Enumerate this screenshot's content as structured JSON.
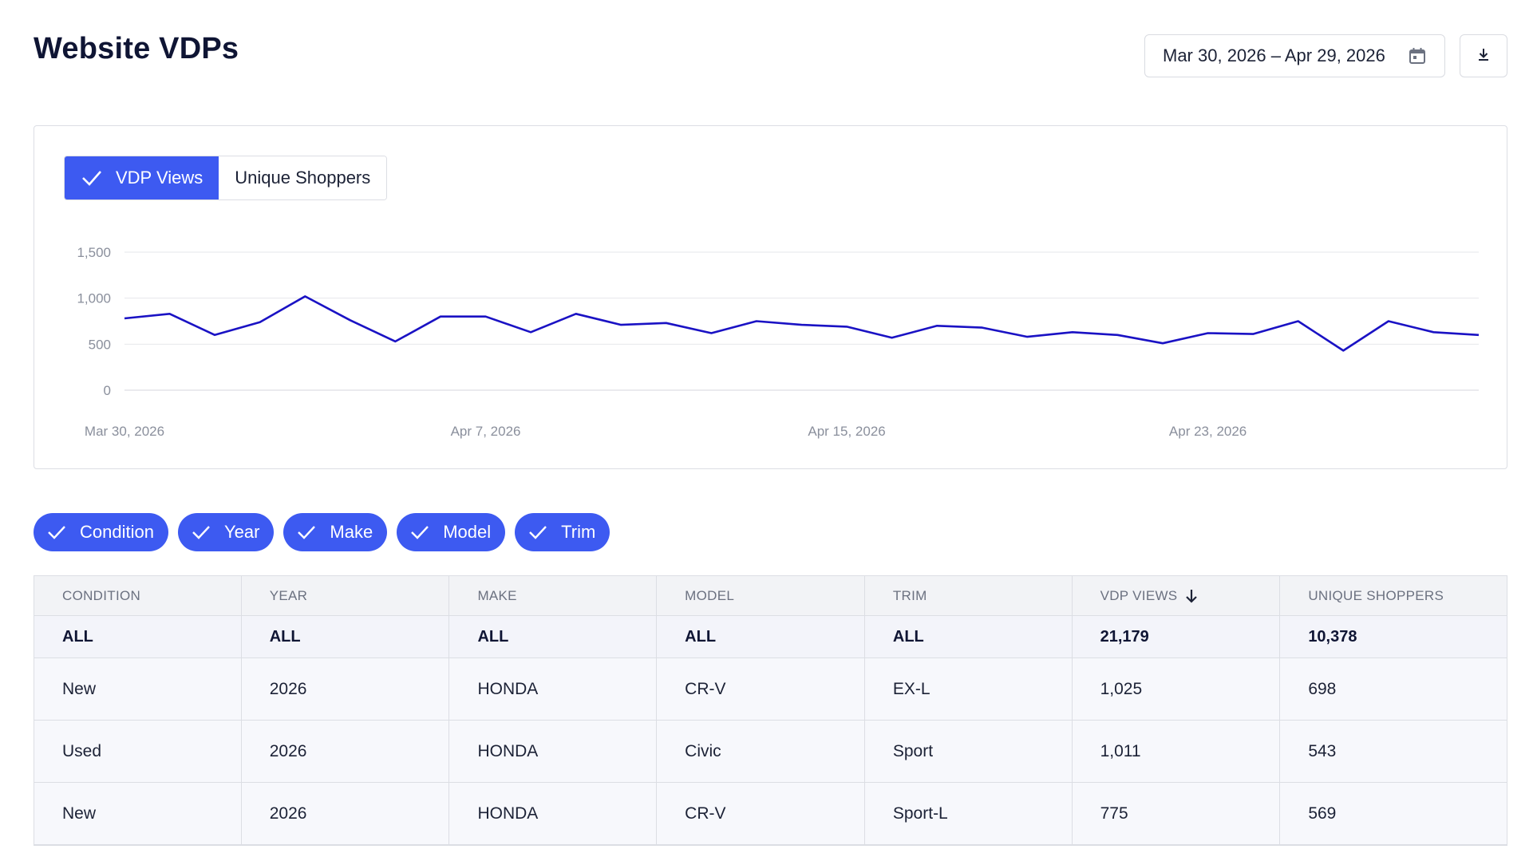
{
  "page": {
    "title": "Website VDPs"
  },
  "header": {
    "date_range": "Mar 30, 2026 – Apr 29, 2026",
    "calendar_icon": "calendar-icon",
    "download_icon": "download-icon"
  },
  "metrics": [
    {
      "label": "VDP Views",
      "active": true
    },
    {
      "label": "Unique Shoppers",
      "active": false
    }
  ],
  "colors": {
    "accent": "#3d5af1",
    "line": "#1a12c4",
    "title": "#0f1534"
  },
  "chart_data": {
    "type": "line",
    "series": [
      {
        "values": [
          780,
          830,
          600,
          740,
          1020,
          760,
          530,
          800,
          800,
          630,
          830,
          710,
          730,
          620,
          750,
          710,
          690,
          570,
          700,
          680,
          580,
          630,
          600,
          510,
          620,
          610,
          750,
          430,
          750,
          630,
          600
        ]
      }
    ],
    "x": [
      "Mar 30, 2026",
      "Mar 31, 2026",
      "Apr 1, 2026",
      "Apr 2, 2026",
      "Apr 3, 2026",
      "Apr 4, 2026",
      "Apr 5, 2026",
      "Apr 6, 2026",
      "Apr 7, 2026",
      "Apr 8, 2026",
      "Apr 9, 2026",
      "Apr 10, 2026",
      "Apr 11, 2026",
      "Apr 12, 2026",
      "Apr 13, 2026",
      "Apr 14, 2026",
      "Apr 15, 2026",
      "Apr 16, 2026",
      "Apr 17, 2026",
      "Apr 18, 2026",
      "Apr 19, 2026",
      "Apr 20, 2026",
      "Apr 21, 2026",
      "Apr 22, 2026",
      "Apr 23, 2026",
      "Apr 24, 2026",
      "Apr 25, 2026",
      "Apr 26, 2026",
      "Apr 27, 2026",
      "Apr 28, 2026",
      "Apr 29, 2026"
    ],
    "x_tick_labels": [
      "Mar 30, 2026",
      "Apr 7, 2026",
      "Apr 15, 2026",
      "Apr 23, 2026"
    ],
    "y_ticks": [
      0,
      500,
      1000,
      1500
    ],
    "y_tick_labels": [
      "0",
      "500",
      "1,000",
      "1,500"
    ],
    "ylim": [
      0,
      1500
    ],
    "grid": true,
    "legend": "none"
  },
  "filters": [
    "Condition",
    "Year",
    "Make",
    "Model",
    "Trim"
  ],
  "table": {
    "headers": [
      "CONDITION",
      "YEAR",
      "MAKE",
      "MODEL",
      "TRIM",
      "VDP VIEWS",
      "UNIQUE SHOPPERS"
    ],
    "sort_icon": "arrow-down-icon",
    "total": [
      "ALL",
      "ALL",
      "ALL",
      "ALL",
      "ALL",
      "21,179",
      "10,378"
    ],
    "rows": [
      [
        "New",
        "2026",
        "HONDA",
        "CR-V",
        "EX-L",
        "1,025",
        "698"
      ],
      [
        "Used",
        "2026",
        "HONDA",
        "Civic",
        "Sport",
        "1,011",
        "543"
      ],
      [
        "New",
        "2026",
        "HONDA",
        "CR-V",
        "Sport-L",
        "775",
        "569"
      ]
    ]
  }
}
